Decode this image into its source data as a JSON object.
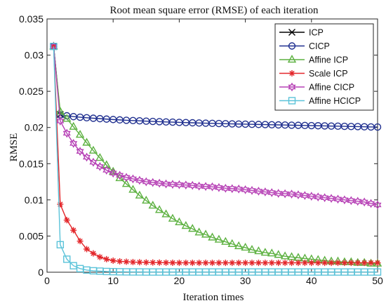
{
  "chart_data": {
    "type": "line",
    "title": "Root mean square error (RMSE) of each iteration",
    "xlabel": "Iteration times",
    "ylabel": "RMSE",
    "xlim": [
      0,
      50
    ],
    "ylim": [
      0,
      0.035
    ],
    "xticks": [
      0,
      10,
      20,
      30,
      40,
      50
    ],
    "xtick_labels": [
      "0",
      "10",
      "20",
      "30",
      "40",
      "50"
    ],
    "yticks": [
      0,
      0.005,
      0.01,
      0.015,
      0.02,
      0.025,
      0.03,
      0.035
    ],
    "ytick_labels": [
      "0",
      "0.005",
      "0.01",
      "0.015",
      "0.02",
      "0.025",
      "0.03",
      "0.035"
    ],
    "grid": false,
    "legend_position": "top-right",
    "series": [
      {
        "name": "ICP",
        "color": "#000000",
        "marker": "x",
        "x": [
          1,
          2
        ],
        "y": [
          0.0312,
          0.0218
        ]
      },
      {
        "name": "CICP",
        "color": "#1f2f8f",
        "marker": "circle",
        "x": [
          1,
          2,
          3,
          4,
          5,
          6,
          7,
          8,
          9,
          10,
          11,
          12,
          13,
          14,
          15,
          16,
          17,
          18,
          19,
          20,
          21,
          22,
          23,
          24,
          25,
          26,
          27,
          28,
          29,
          30,
          31,
          32,
          33,
          34,
          35,
          36,
          37,
          38,
          39,
          40,
          41,
          42,
          43,
          44,
          45,
          46,
          47,
          48,
          49,
          50
        ],
        "y": [
          0.0312,
          0.02175,
          0.02162,
          0.0215,
          0.02142,
          0.02135,
          0.02128,
          0.02122,
          0.02116,
          0.0211,
          0.02105,
          0.021,
          0.02096,
          0.02092,
          0.02088,
          0.02084,
          0.0208,
          0.02077,
          0.02074,
          0.02071,
          0.02068,
          0.02065,
          0.02062,
          0.0206,
          0.02057,
          0.02055,
          0.02052,
          0.0205,
          0.02048,
          0.02046,
          0.02044,
          0.02042,
          0.0204,
          0.02038,
          0.02036,
          0.02034,
          0.02032,
          0.0203,
          0.02028,
          0.02026,
          0.02024,
          0.02022,
          0.0202,
          0.02018,
          0.02016,
          0.02014,
          0.02012,
          0.0201,
          0.02008,
          0.02006
        ]
      },
      {
        "name": "Affine ICP",
        "color": "#5db141",
        "marker": "triangle",
        "x": [
          1,
          2,
          3,
          4,
          5,
          6,
          7,
          8,
          9,
          10,
          11,
          12,
          13,
          14,
          15,
          16,
          17,
          18,
          19,
          20,
          21,
          22,
          23,
          24,
          25,
          26,
          27,
          28,
          29,
          30,
          31,
          32,
          33,
          34,
          35,
          36,
          37,
          38,
          39,
          40,
          41,
          42,
          43,
          44,
          45,
          46,
          47,
          48,
          49,
          50
        ],
        "y": [
          0.0312,
          0.0222,
          0.0212,
          0.0201,
          0.019,
          0.0179,
          0.0168,
          0.0158,
          0.0148,
          0.0139,
          0.013,
          0.0122,
          0.0114,
          0.0106,
          0.0099,
          0.0092,
          0.0086,
          0.008,
          0.0074,
          0.0069,
          0.0064,
          0.006,
          0.0055,
          0.0052,
          0.0048,
          0.0045,
          0.0042,
          0.0039,
          0.0036,
          0.0034,
          0.0031,
          0.0029,
          0.0027,
          0.0026,
          0.0024,
          0.0022,
          0.0021,
          0.002,
          0.0019,
          0.0018,
          0.0017,
          0.0016,
          0.0015,
          0.0015,
          0.0014,
          0.0014,
          0.0013,
          0.0013,
          0.0012,
          0.0012
        ]
      },
      {
        "name": "Scale ICP",
        "color": "#e3262a",
        "marker": "asterisk",
        "x": [
          1,
          2,
          3,
          4,
          5,
          6,
          7,
          8,
          9,
          10,
          11,
          12,
          13,
          14,
          15,
          16,
          17,
          18,
          19,
          20,
          21,
          22,
          23,
          24,
          25,
          26,
          27,
          28,
          29,
          30,
          31,
          32,
          33,
          34,
          35,
          36,
          37,
          38,
          39,
          40,
          41,
          42,
          43,
          44,
          45,
          46,
          47,
          48,
          49,
          50
        ],
        "y": [
          0.0312,
          0.0094,
          0.0072,
          0.0058,
          0.0043,
          0.0032,
          0.0026,
          0.0021,
          0.0018,
          0.0016,
          0.0015,
          0.00145,
          0.0014,
          0.00138,
          0.00136,
          0.00134,
          0.00133,
          0.00132,
          0.00131,
          0.0013,
          0.0013,
          0.0013,
          0.0013,
          0.0013,
          0.0013,
          0.0013,
          0.0013,
          0.0013,
          0.0013,
          0.0013,
          0.0013,
          0.0013,
          0.0013,
          0.0013,
          0.0013,
          0.0013,
          0.0013,
          0.0013,
          0.0013,
          0.0013,
          0.0013,
          0.0013,
          0.0013,
          0.0013,
          0.0013,
          0.0013,
          0.0013,
          0.0013,
          0.0013,
          0.0013
        ]
      },
      {
        "name": "Affine CICP",
        "color": "#b640b5",
        "marker": "hexagram",
        "x": [
          1,
          2,
          3,
          4,
          5,
          6,
          7,
          8,
          9,
          10,
          11,
          12,
          13,
          14,
          15,
          16,
          17,
          18,
          19,
          20,
          21,
          22,
          23,
          24,
          25,
          26,
          27,
          28,
          29,
          30,
          31,
          32,
          33,
          34,
          35,
          36,
          37,
          38,
          39,
          40,
          41,
          42,
          43,
          44,
          45,
          46,
          47,
          48,
          49,
          50
        ],
        "y": [
          0.0312,
          0.0209,
          0.0192,
          0.0178,
          0.0167,
          0.0159,
          0.0152,
          0.0146,
          0.0141,
          0.0137,
          0.0134,
          0.0131,
          0.0129,
          0.0127,
          0.0125,
          0.0124,
          0.0123,
          0.0122,
          0.01215,
          0.0121,
          0.01205,
          0.012,
          0.0119,
          0.01185,
          0.0118,
          0.0117,
          0.0116,
          0.01155,
          0.0115,
          0.0114,
          0.0113,
          0.0112,
          0.0111,
          0.011,
          0.0109,
          0.01085,
          0.0108,
          0.0107,
          0.0106,
          0.0105,
          0.0104,
          0.0103,
          0.0102,
          0.0101,
          0.01,
          0.0099,
          0.0098,
          0.0097,
          0.0095,
          0.0093
        ]
      },
      {
        "name": "Affine HCICP",
        "color": "#5bc3d9",
        "marker": "square",
        "x": [
          1,
          2,
          3,
          4,
          5,
          6,
          7,
          8,
          9,
          10,
          11,
          12,
          13,
          14,
          15,
          16,
          17,
          18,
          19,
          20,
          21,
          22,
          23,
          24,
          25,
          26,
          27,
          28,
          29,
          30,
          31,
          32,
          33,
          34,
          35,
          36,
          37,
          38,
          39,
          40,
          41,
          42,
          43,
          44,
          45,
          46,
          47,
          48,
          49,
          50
        ],
        "y": [
          0.0312,
          0.0038,
          0.0018,
          0.0009,
          0.0005,
          0.0003,
          0.0002,
          0.00015,
          0.0001,
          8e-05,
          6e-05,
          5e-05,
          4e-05,
          4e-05,
          3e-05,
          3e-05,
          3e-05,
          3e-05,
          3e-05,
          3e-05,
          3e-05,
          3e-05,
          3e-05,
          3e-05,
          3e-05,
          3e-05,
          3e-05,
          3e-05,
          3e-05,
          3e-05,
          3e-05,
          3e-05,
          3e-05,
          3e-05,
          3e-05,
          3e-05,
          3e-05,
          3e-05,
          3e-05,
          3e-05,
          3e-05,
          3e-05,
          3e-05,
          3e-05,
          3e-05,
          3e-05,
          3e-05,
          3e-05,
          3e-05,
          3e-05
        ]
      }
    ]
  }
}
